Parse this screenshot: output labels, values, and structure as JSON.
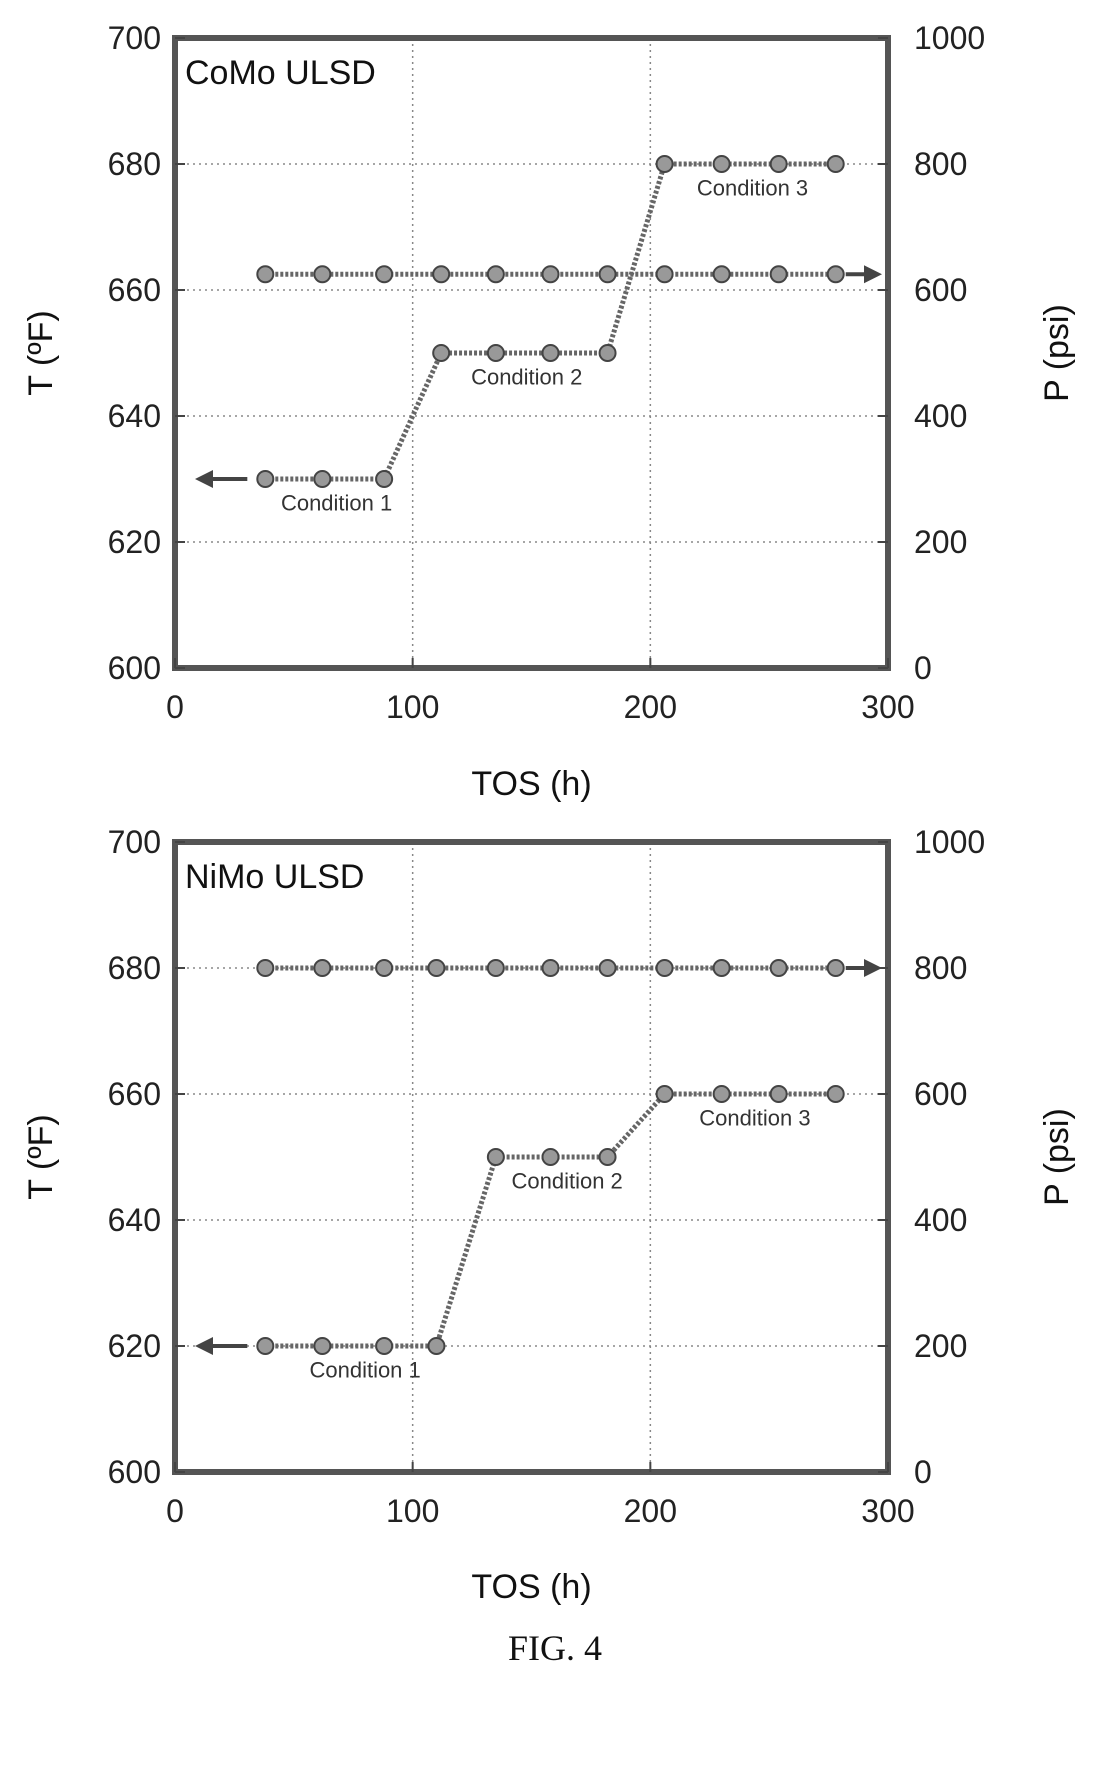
{
  "chart_data": [
    {
      "type": "line",
      "panel_label": "CoMo ULSD",
      "xlabel": "TOS (h)",
      "ylabel_left": "T (ºF)",
      "ylabel_right": "P (psi)",
      "xlim": [
        0,
        300
      ],
      "ylim_left": [
        600,
        700
      ],
      "ylim_right": [
        0,
        1000
      ],
      "x_ticks": [
        "0",
        "100",
        "200",
        "300"
      ],
      "y_left_ticks": [
        "600",
        "620",
        "640",
        "660",
        "680",
        "700"
      ],
      "y_right_ticks": [
        "0",
        "200",
        "400",
        "600",
        "800",
        "1000"
      ],
      "grid": true,
      "series": [
        {
          "axis": "left",
          "x": [
            38,
            62,
            88,
            112,
            135,
            158,
            182,
            206,
            230,
            254,
            278
          ],
          "y": [
            630,
            630,
            630,
            650,
            650,
            650,
            650,
            680,
            680,
            680,
            680
          ]
        },
        {
          "axis": "right",
          "x": [
            38,
            62,
            88,
            112,
            135,
            158,
            182,
            206,
            230,
            254,
            278
          ],
          "y": [
            625,
            625,
            625,
            625,
            625,
            625,
            625,
            625,
            625,
            625,
            625
          ]
        }
      ],
      "annotations": [
        {
          "text": "Condition 1",
          "x": 68,
          "y": 625
        },
        {
          "text": "Condition 2",
          "x": 148,
          "y": 645
        },
        {
          "text": "Condition 3",
          "x": 243,
          "y": 675
        }
      ]
    },
    {
      "type": "line",
      "panel_label": "NiMo ULSD",
      "xlabel": "TOS (h)",
      "ylabel_left": "T (ºF)",
      "ylabel_right": "P (psi)",
      "xlim": [
        0,
        300
      ],
      "ylim_left": [
        600,
        700
      ],
      "ylim_right": [
        0,
        1000
      ],
      "x_ticks": [
        "0",
        "100",
        "200",
        "300"
      ],
      "y_left_ticks": [
        "600",
        "620",
        "640",
        "660",
        "680",
        "700"
      ],
      "y_right_ticks": [
        "0",
        "200",
        "400",
        "600",
        "800",
        "1000"
      ],
      "grid": true,
      "series": [
        {
          "axis": "left",
          "x": [
            38,
            62,
            88,
            110,
            135,
            158,
            182,
            206,
            230,
            254,
            278
          ],
          "y": [
            620,
            620,
            620,
            620,
            650,
            650,
            650,
            660,
            660,
            660,
            660
          ]
        },
        {
          "axis": "right",
          "x": [
            38,
            62,
            88,
            110,
            135,
            158,
            182,
            206,
            230,
            254,
            278
          ],
          "y": [
            800,
            800,
            800,
            800,
            800,
            800,
            800,
            800,
            800,
            800,
            800
          ]
        }
      ],
      "annotations": [
        {
          "text": "Condition 1",
          "x": 80,
          "y": 615
        },
        {
          "text": "Condition 2",
          "x": 165,
          "y": 645
        },
        {
          "text": "Condition 3",
          "x": 244,
          "y": 655
        }
      ]
    }
  ],
  "caption": "FIG. 4"
}
